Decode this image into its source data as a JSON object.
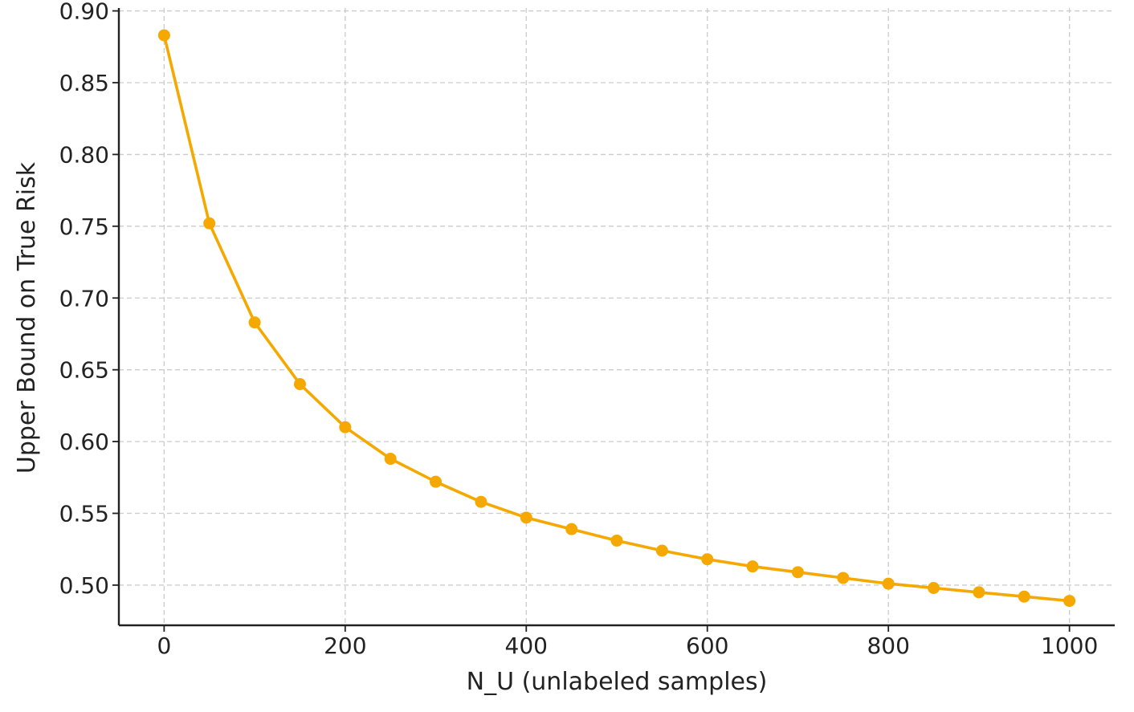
{
  "chart_data": {
    "type": "line",
    "title": "",
    "xlabel": "N_U (unlabeled samples)",
    "ylabel": "Upper Bound on True Risk",
    "xlim": [
      -50,
      1050
    ],
    "ylim": [
      0.472,
      0.902
    ],
    "grid": true,
    "x_ticks": [
      {
        "value": 0,
        "label": "0"
      },
      {
        "value": 200,
        "label": "200"
      },
      {
        "value": 400,
        "label": "400"
      },
      {
        "value": 600,
        "label": "600"
      },
      {
        "value": 800,
        "label": "800"
      },
      {
        "value": 1000,
        "label": "1000"
      }
    ],
    "y_ticks": [
      {
        "value": 0.5,
        "label": "0.50"
      },
      {
        "value": 0.55,
        "label": "0.55"
      },
      {
        "value": 0.6,
        "label": "0.60"
      },
      {
        "value": 0.65,
        "label": "0.65"
      },
      {
        "value": 0.7,
        "label": "0.70"
      },
      {
        "value": 0.75,
        "label": "0.75"
      },
      {
        "value": 0.8,
        "label": "0.80"
      },
      {
        "value": 0.85,
        "label": "0.85"
      },
      {
        "value": 0.9,
        "label": "0.90"
      }
    ],
    "series": [
      {
        "color": "#F5A800",
        "marker": "circle",
        "x": [
          0,
          50,
          100,
          150,
          200,
          250,
          300,
          350,
          400,
          450,
          500,
          550,
          600,
          650,
          700,
          750,
          800,
          850,
          900,
          950,
          1000
        ],
        "y": [
          0.883,
          0.752,
          0.683,
          0.64,
          0.61,
          0.588,
          0.572,
          0.558,
          0.547,
          0.539,
          0.531,
          0.524,
          0.518,
          0.513,
          0.509,
          0.505,
          0.501,
          0.498,
          0.495,
          0.492,
          0.489
        ]
      }
    ]
  }
}
